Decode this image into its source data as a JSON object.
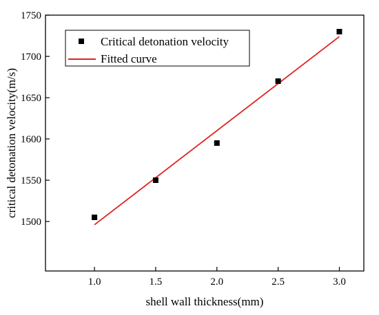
{
  "chart_data": {
    "type": "scatter",
    "xlabel": "shell wall thickness(mm)",
    "ylabel": "critical detonation velocity(m/s)",
    "xlim": [
      0.6,
      3.2
    ],
    "ylim": [
      1440,
      1750
    ],
    "x_ticks": [
      "1.0",
      "1.5",
      "2.0",
      "2.5",
      "3.0"
    ],
    "y_ticks": [
      "1500",
      "1550",
      "1600",
      "1650",
      "1700",
      "1750"
    ],
    "x_tick_values": [
      1.0,
      1.5,
      2.0,
      2.5,
      3.0
    ],
    "y_tick_values": [
      1500,
      1550,
      1600,
      1650,
      1700,
      1750
    ],
    "legend_position": "top-left",
    "grid": false,
    "series": [
      {
        "name": "Critical detonation velocity",
        "kind": "scatter",
        "marker": "square",
        "color": "#000000",
        "x": [
          1.0,
          1.5,
          2.0,
          2.5,
          3.0
        ],
        "y": [
          1505,
          1550,
          1595,
          1670,
          1730
        ]
      },
      {
        "name": "Fitted curve",
        "kind": "line",
        "color": "#e02020",
        "x": [
          1.0,
          3.0
        ],
        "y": [
          1496,
          1724
        ]
      }
    ]
  }
}
